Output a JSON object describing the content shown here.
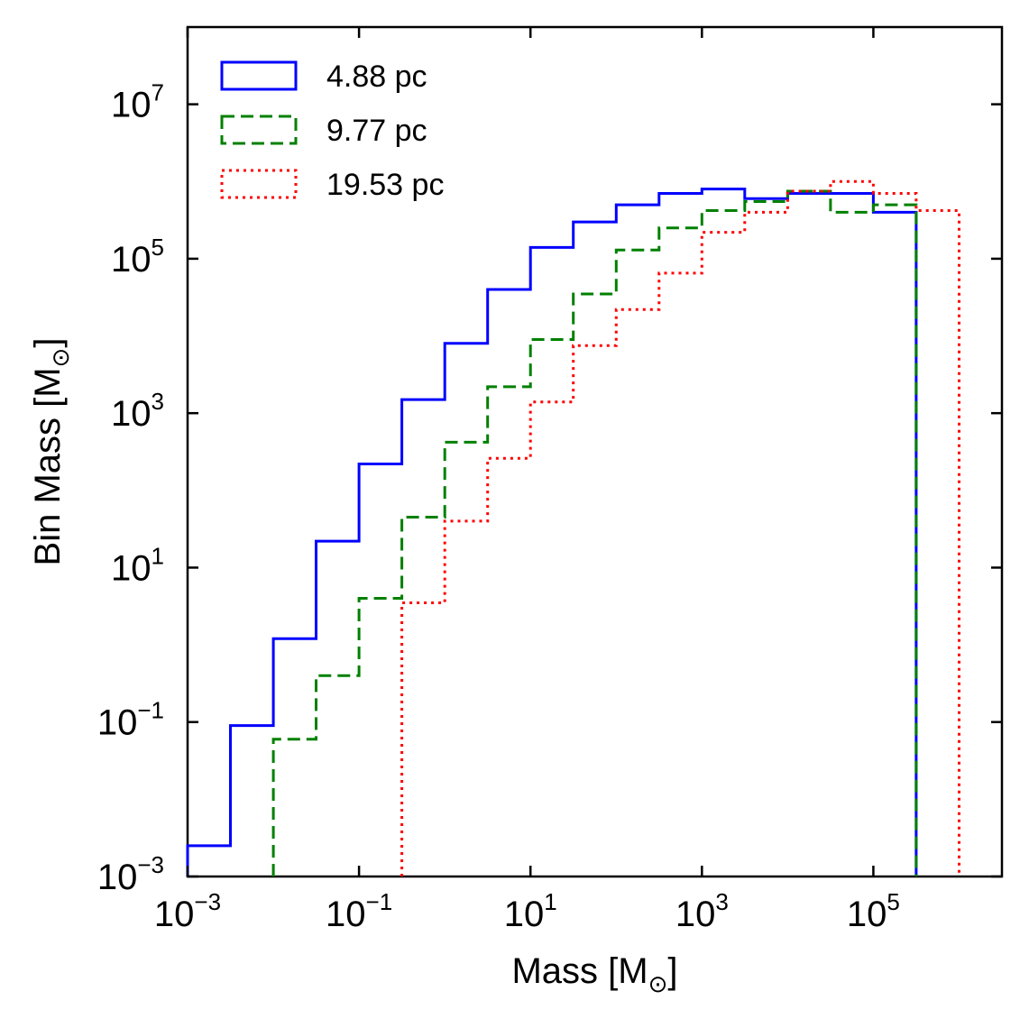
{
  "chart_data": {
    "type": "histogram-step",
    "xlabel": "Mass [M",
    "ylabel": "Bin Mass [M",
    "unit_symbol": "⊙",
    "x_scale": "log",
    "y_scale": "log",
    "xlim": [
      0.001,
      3162277.66
    ],
    "ylim": [
      0.001,
      100000000
    ],
    "x_ticks": [
      {
        "value": 0.001,
        "base": "10",
        "exp": "−3"
      },
      {
        "value": 0.1,
        "base": "10",
        "exp": "−1"
      },
      {
        "value": 10,
        "base": "10",
        "exp": "1"
      },
      {
        "value": 1000,
        "base": "10",
        "exp": "3"
      },
      {
        "value": 100000,
        "base": "10",
        "exp": "5"
      }
    ],
    "y_ticks": [
      {
        "value": 0.001,
        "base": "10",
        "exp": "−3"
      },
      {
        "value": 0.1,
        "base": "10",
        "exp": "−1"
      },
      {
        "value": 10,
        "base": "10",
        "exp": "1"
      },
      {
        "value": 1000,
        "base": "10",
        "exp": "3"
      },
      {
        "value": 100000,
        "base": "10",
        "exp": "5"
      },
      {
        "value": 10000000,
        "base": "10",
        "exp": "7"
      }
    ],
    "grid": false,
    "legend_position": "top-left",
    "series": [
      {
        "name": "4.88 pc",
        "color": "#0000ff",
        "linestyle": "solid",
        "bin_edges": [
          0.001,
          0.00316,
          0.01,
          0.0316,
          0.1,
          0.316,
          1,
          3.16,
          10,
          31.6,
          100,
          316,
          1000,
          3160,
          10000,
          31600,
          100000,
          316000
        ],
        "values": [
          0.0025,
          0.09,
          1.2,
          22,
          220,
          1500,
          8000,
          40000,
          140000,
          300000,
          500000,
          700000,
          800000,
          600000,
          700000,
          700000,
          400000
        ]
      },
      {
        "name": "9.77 pc",
        "color": "#008000",
        "linestyle": "dashed",
        "bin_edges": [
          0.01,
          0.0316,
          0.1,
          0.316,
          1,
          3.16,
          10,
          31.6,
          100,
          316,
          1000,
          3160,
          10000,
          31600,
          100000,
          316000
        ],
        "values": [
          0.06,
          0.4,
          4,
          45,
          420,
          2200,
          9000,
          35000,
          130000,
          250000,
          420000,
          550000,
          750000,
          400000,
          500000
        ]
      },
      {
        "name": "19.53 pc",
        "color": "#ff0000",
        "linestyle": "dotted",
        "bin_edges": [
          0.316,
          1,
          3.16,
          10,
          31.6,
          100,
          316,
          1000,
          3160,
          10000,
          31600,
          100000,
          316000,
          1000000
        ],
        "values": [
          3.5,
          40,
          260,
          1400,
          7500,
          22000,
          65000,
          220000,
          400000,
          750000,
          1000000,
          700000,
          420000
        ]
      }
    ]
  }
}
